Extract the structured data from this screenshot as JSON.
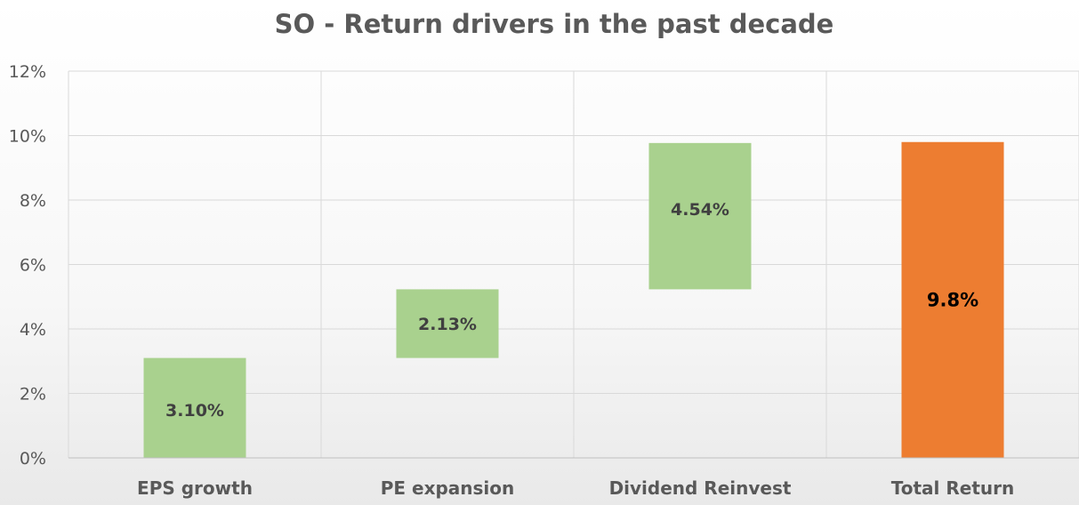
{
  "chart_data": {
    "type": "bar",
    "subtype": "waterfall",
    "title": "SO - Return drivers in the past decade",
    "xlabel": "",
    "ylabel": "",
    "categories": [
      "EPS growth",
      "PE expansion",
      "Dividend Reinvest",
      "Total Return"
    ],
    "series": [
      {
        "values": [
          3.1,
          2.13,
          4.54,
          9.8
        ],
        "bases": [
          0,
          3.1,
          5.23,
          0
        ],
        "data_labels": [
          "3.10%",
          "2.13%",
          "4.54%",
          "9.8%"
        ],
        "colors": [
          "#a9d18e",
          "#a9d18e",
          "#a9d18e",
          "#ed7d31"
        ]
      }
    ],
    "ylim": [
      0,
      12
    ],
    "yticks": [
      0,
      2,
      4,
      6,
      8,
      10,
      12
    ],
    "ytick_labels": [
      "0%",
      "2%",
      "4%",
      "6%",
      "8%",
      "10%",
      "12%"
    ],
    "grid": true,
    "legend": "none"
  }
}
